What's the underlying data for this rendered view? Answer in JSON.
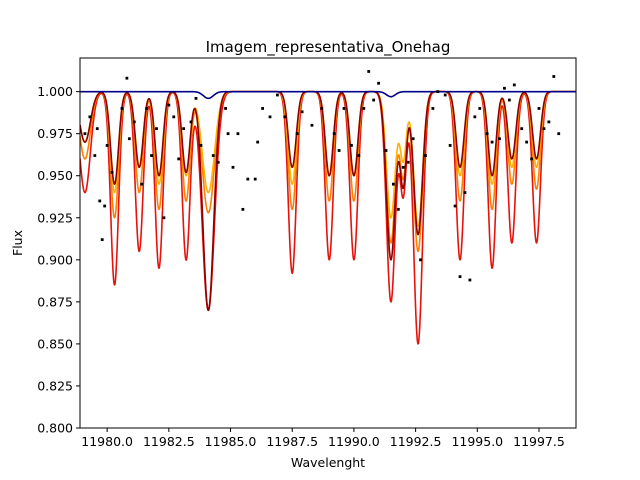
{
  "chart_data": {
    "type": "line",
    "title": "Imagem_representativa_Onehag",
    "xlabel": "Wavelenght",
    "ylabel": "Flux",
    "xlim": [
      11978.9,
      11999.0
    ],
    "ylim": [
      0.8,
      1.02
    ],
    "xticks": [
      11980.0,
      11982.5,
      11985.0,
      11987.5,
      11990.0,
      11992.5,
      11995.0,
      11997.5
    ],
    "xtick_labels": [
      "11980.0",
      "11982.5",
      "11985.0",
      "11987.5",
      "11990.0",
      "11992.5",
      "11995.0",
      "11997.5"
    ],
    "yticks": [
      0.8,
      0.825,
      0.85,
      0.875,
      0.9,
      0.925,
      0.95,
      0.975,
      1.0
    ],
    "ytick_labels": [
      "0.800",
      "0.825",
      "0.850",
      "0.875",
      "0.900",
      "0.925",
      "0.950",
      "0.975",
      "1.000"
    ],
    "grid": false,
    "legend": false,
    "series": [
      {
        "color": "#e8120c",
        "lines": [
          {
            "c": 11979.1,
            "d": 0.06,
            "w": 0.22
          },
          {
            "c": 11980.3,
            "d": 0.115,
            "w": 0.16
          },
          {
            "c": 11981.3,
            "d": 0.095,
            "w": 0.16
          },
          {
            "c": 11982.1,
            "d": 0.105,
            "w": 0.16
          },
          {
            "c": 11983.2,
            "d": 0.1,
            "w": 0.16
          },
          {
            "c": 11984.1,
            "d": 0.13,
            "w": 0.25
          },
          {
            "c": 11987.5,
            "d": 0.108,
            "w": 0.16
          },
          {
            "c": 11989.0,
            "d": 0.1,
            "w": 0.16
          },
          {
            "c": 11990.0,
            "d": 0.1,
            "w": 0.16
          },
          {
            "c": 11991.5,
            "d": 0.125,
            "w": 0.18
          },
          {
            "c": 11992.0,
            "d": 0.06,
            "w": 0.13
          },
          {
            "c": 11992.6,
            "d": 0.15,
            "w": 0.18
          },
          {
            "c": 11994.3,
            "d": 0.1,
            "w": 0.16
          },
          {
            "c": 11995.6,
            "d": 0.105,
            "w": 0.16
          },
          {
            "c": 11996.4,
            "d": 0.09,
            "w": 0.16
          },
          {
            "c": 11997.4,
            "d": 0.09,
            "w": 0.16
          }
        ]
      },
      {
        "color": "#ff7f00",
        "lines": [
          {
            "c": 11979.1,
            "d": 0.04,
            "w": 0.22
          },
          {
            "c": 11980.3,
            "d": 0.075,
            "w": 0.16
          },
          {
            "c": 11981.3,
            "d": 0.06,
            "w": 0.16
          },
          {
            "c": 11982.1,
            "d": 0.07,
            "w": 0.16
          },
          {
            "c": 11983.2,
            "d": 0.065,
            "w": 0.16
          },
          {
            "c": 11984.1,
            "d": 0.072,
            "w": 0.25
          },
          {
            "c": 11987.5,
            "d": 0.07,
            "w": 0.16
          },
          {
            "c": 11989.0,
            "d": 0.065,
            "w": 0.16
          },
          {
            "c": 11990.0,
            "d": 0.065,
            "w": 0.16
          },
          {
            "c": 11991.5,
            "d": 0.09,
            "w": 0.18
          },
          {
            "c": 11992.0,
            "d": 0.05,
            "w": 0.13
          },
          {
            "c": 11992.6,
            "d": 0.095,
            "w": 0.18
          },
          {
            "c": 11994.3,
            "d": 0.065,
            "w": 0.16
          },
          {
            "c": 11995.6,
            "d": 0.07,
            "w": 0.16
          },
          {
            "c": 11996.4,
            "d": 0.055,
            "w": 0.16
          },
          {
            "c": 11997.4,
            "d": 0.058,
            "w": 0.16
          }
        ]
      },
      {
        "color": "#ffb000",
        "lines": [
          {
            "c": 11979.1,
            "d": 0.03,
            "w": 0.22
          },
          {
            "c": 11980.3,
            "d": 0.06,
            "w": 0.16
          },
          {
            "c": 11981.3,
            "d": 0.045,
            "w": 0.16
          },
          {
            "c": 11982.1,
            "d": 0.055,
            "w": 0.16
          },
          {
            "c": 11983.2,
            "d": 0.05,
            "w": 0.16
          },
          {
            "c": 11984.1,
            "d": 0.06,
            "w": 0.25
          },
          {
            "c": 11987.5,
            "d": 0.055,
            "w": 0.16
          },
          {
            "c": 11989.0,
            "d": 0.05,
            "w": 0.16
          },
          {
            "c": 11990.0,
            "d": 0.05,
            "w": 0.16
          },
          {
            "c": 11991.5,
            "d": 0.075,
            "w": 0.18
          },
          {
            "c": 11992.0,
            "d": 0.04,
            "w": 0.13
          },
          {
            "c": 11992.6,
            "d": 0.08,
            "w": 0.18
          },
          {
            "c": 11994.3,
            "d": 0.05,
            "w": 0.16
          },
          {
            "c": 11995.6,
            "d": 0.055,
            "w": 0.16
          },
          {
            "c": 11996.4,
            "d": 0.045,
            "w": 0.16
          },
          {
            "c": 11997.4,
            "d": 0.045,
            "w": 0.16
          }
        ]
      },
      {
        "color": "#8b0000",
        "lines": [
          {
            "c": 11979.1,
            "d": 0.03,
            "w": 0.22
          },
          {
            "c": 11980.3,
            "d": 0.055,
            "w": 0.16
          },
          {
            "c": 11981.3,
            "d": 0.045,
            "w": 0.16
          },
          {
            "c": 11982.1,
            "d": 0.05,
            "w": 0.16
          },
          {
            "c": 11983.2,
            "d": 0.048,
            "w": 0.16
          },
          {
            "c": 11984.1,
            "d": 0.13,
            "w": 0.22
          },
          {
            "c": 11987.5,
            "d": 0.045,
            "w": 0.16
          },
          {
            "c": 11989.0,
            "d": 0.05,
            "w": 0.16
          },
          {
            "c": 11990.0,
            "d": 0.05,
            "w": 0.16
          },
          {
            "c": 11991.5,
            "d": 0.1,
            "w": 0.18
          },
          {
            "c": 11992.0,
            "d": 0.055,
            "w": 0.13
          },
          {
            "c": 11992.6,
            "d": 0.085,
            "w": 0.18
          },
          {
            "c": 11994.3,
            "d": 0.045,
            "w": 0.16
          },
          {
            "c": 11995.6,
            "d": 0.05,
            "w": 0.16
          },
          {
            "c": 11996.4,
            "d": 0.04,
            "w": 0.16
          },
          {
            "c": 11997.4,
            "d": 0.04,
            "w": 0.16
          }
        ]
      },
      {
        "color": "#00008b",
        "lines": [
          {
            "c": 11984.1,
            "d": 0.004,
            "w": 0.2
          },
          {
            "c": 11991.5,
            "d": 0.003,
            "w": 0.18
          }
        ]
      }
    ],
    "observed_points": [
      [
        11979.1,
        0.975
      ],
      [
        11979.3,
        0.985
      ],
      [
        11979.5,
        0.962
      ],
      [
        11979.6,
        0.978
      ],
      [
        11979.7,
        0.935
      ],
      [
        11979.8,
        0.912
      ],
      [
        11979.9,
        0.932
      ],
      [
        11980.0,
        0.968
      ],
      [
        11980.2,
        0.952
      ],
      [
        11980.6,
        0.99
      ],
      [
        11980.8,
        1.008
      ],
      [
        11980.9,
        0.972
      ],
      [
        11981.1,
        0.982
      ],
      [
        11981.4,
        0.945
      ],
      [
        11981.6,
        0.99
      ],
      [
        11981.8,
        0.962
      ],
      [
        11982.0,
        0.978
      ],
      [
        11982.3,
        0.925
      ],
      [
        11982.5,
        0.992
      ],
      [
        11982.7,
        0.985
      ],
      [
        11982.9,
        0.96
      ],
      [
        11983.1,
        0.978
      ],
      [
        11983.4,
        0.982
      ],
      [
        11983.6,
        0.996
      ],
      [
        11983.8,
        0.968
      ],
      [
        11984.3,
        0.962
      ],
      [
        11984.5,
        0.958
      ],
      [
        11984.8,
        0.99
      ],
      [
        11984.9,
        0.975
      ],
      [
        11985.1,
        0.955
      ],
      [
        11985.3,
        0.975
      ],
      [
        11985.5,
        0.93
      ],
      [
        11985.7,
        0.948
      ],
      [
        11986.0,
        0.948
      ],
      [
        11986.1,
        0.97
      ],
      [
        11986.3,
        0.99
      ],
      [
        11986.6,
        0.985
      ],
      [
        11986.9,
        0.998
      ],
      [
        11987.2,
        0.985
      ],
      [
        11987.7,
        0.975
      ],
      [
        11987.9,
        0.988
      ],
      [
        11988.3,
        0.98
      ],
      [
        11988.7,
        0.99
      ],
      [
        11989.2,
        0.975
      ],
      [
        11989.4,
        0.965
      ],
      [
        11989.6,
        0.99
      ],
      [
        11989.9,
        0.968
      ],
      [
        11990.2,
        0.962
      ],
      [
        11990.4,
        0.99
      ],
      [
        11990.6,
        1.012
      ],
      [
        11990.8,
        0.995
      ],
      [
        11991.0,
        1.005
      ],
      [
        11991.3,
        0.965
      ],
      [
        11991.6,
        0.945
      ],
      [
        11991.8,
        0.93
      ],
      [
        11992.0,
        0.955
      ],
      [
        11992.2,
        0.958
      ],
      [
        11992.4,
        0.972
      ],
      [
        11992.7,
        0.9
      ],
      [
        11992.9,
        0.962
      ],
      [
        11993.2,
        0.99
      ],
      [
        11993.4,
        1.0
      ],
      [
        11993.7,
        0.998
      ],
      [
        11993.9,
        0.968
      ],
      [
        11994.1,
        0.932
      ],
      [
        11994.3,
        0.89
      ],
      [
        11994.5,
        0.94
      ],
      [
        11994.7,
        0.888
      ],
      [
        11994.9,
        0.985
      ],
      [
        11995.1,
        0.99
      ],
      [
        11995.4,
        0.975
      ],
      [
        11995.6,
        0.97
      ],
      [
        11995.9,
        0.972
      ],
      [
        11996.1,
        1.002
      ],
      [
        11996.3,
        0.995
      ],
      [
        11996.5,
        1.004
      ],
      [
        11996.8,
        0.978
      ],
      [
        11997.0,
        0.97
      ],
      [
        11997.2,
        0.96
      ],
      [
        11997.5,
        0.99
      ],
      [
        11997.7,
        0.978
      ],
      [
        11997.9,
        0.982
      ],
      [
        11998.1,
        1.009
      ],
      [
        11998.3,
        0.975
      ]
    ]
  }
}
